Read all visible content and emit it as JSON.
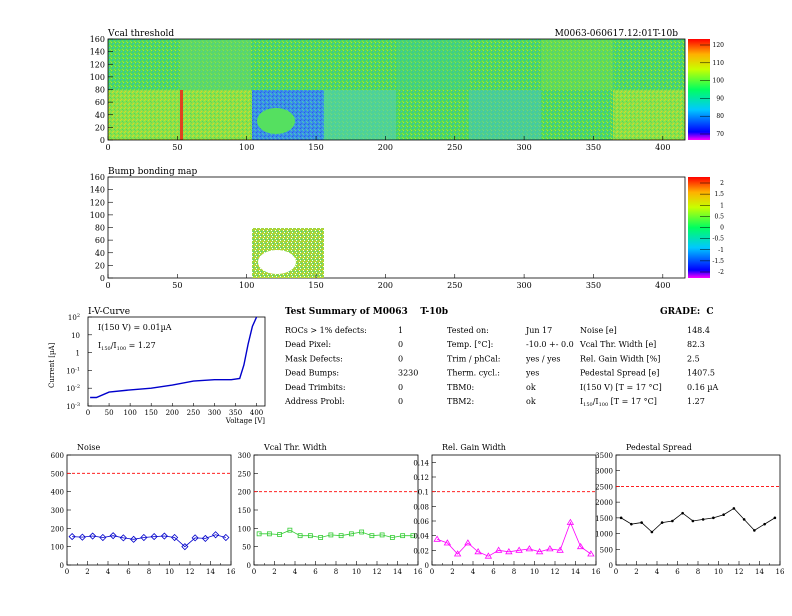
{
  "map1": {
    "title": "Vcal threshold",
    "module_label": "M0063-060617.12:01T-10b",
    "x_ticks": [
      "0",
      "50",
      "100",
      "150",
      "200",
      "250",
      "300",
      "350",
      "400"
    ],
    "y_ticks": [
      "0",
      "20",
      "40",
      "60",
      "80",
      "100",
      "120",
      "140",
      "160"
    ],
    "palette_ticks": [
      "70",
      "80",
      "90",
      "100",
      "110",
      "120"
    ]
  },
  "map2": {
    "title": "Bump bonding map",
    "x_ticks": [
      "0",
      "50",
      "100",
      "150",
      "200",
      "250",
      "300",
      "350",
      "400"
    ],
    "y_ticks": [
      "0",
      "20",
      "40",
      "60",
      "80",
      "100",
      "120",
      "140",
      "160"
    ],
    "palette_ticks": [
      "-2",
      "-1.5",
      "-1",
      "-0.5",
      "0",
      "0.5",
      "1",
      "1.5",
      "2"
    ]
  },
  "iv": {
    "title": "I-V-Curve",
    "ylabel": "Current [µA]",
    "xlabel": "Voltage [V]",
    "annot1": "I(150 V) = 0.01µA",
    "annot2_a": "I",
    "annot2_sub1": "150",
    "annot2_b": "/I",
    "annot2_sub2": "100",
    "annot2_c": " = 1.27",
    "x_ticks": [
      "0",
      "50",
      "100",
      "150",
      "200",
      "250",
      "300",
      "350",
      "400"
    ],
    "y_ticks": [
      {
        "base": "10",
        "exp": "2",
        "v": 100
      },
      {
        "base": "10",
        "exp": "",
        "v": 10
      },
      {
        "base": "1",
        "exp": "",
        "v": 1
      },
      {
        "base": "10",
        "exp": "-1",
        "v": 0.1
      },
      {
        "base": "10",
        "exp": "-2",
        "v": 0.01
      },
      {
        "base": "10",
        "exp": "-3",
        "v": 0.001
      }
    ]
  },
  "summary": {
    "header": "Test Summary of M0063    T-10b",
    "grade": "GRADE:  C",
    "col1": [
      {
        "label": "ROCs > 1% defects:",
        "value": "1"
      },
      {
        "label": "Dead Pixel:",
        "value": "0"
      },
      {
        "label": "Mask Defects:",
        "value": "0"
      },
      {
        "label": "Dead Bumps:",
        "value": "3230"
      },
      {
        "label": "Dead Trimbits:",
        "value": "0"
      },
      {
        "label": "Address Probl:",
        "value": "0"
      }
    ],
    "col2": [
      {
        "label": "Tested on:",
        "value": "Jun 17"
      },
      {
        "label": "Temp. [°C]:",
        "value": "-10.0 +- 0.0"
      },
      {
        "label": "Trim / phCal:",
        "value": "yes / yes"
      },
      {
        "label": "Therm. cycl.:",
        "value": "yes"
      },
      {
        "label": "TBM0:",
        "value": "ok"
      },
      {
        "label": "TBM2:",
        "value": "ok"
      }
    ],
    "col3": [
      {
        "label": "Noise [e]",
        "value": "148.4"
      },
      {
        "label": "Vcal Thr. Width [e]",
        "value": "82.3"
      },
      {
        "label": "Rel. Gain Width [%]",
        "value": "2.5"
      },
      {
        "label": "Pedestal Spread [e]",
        "value": "1407.5"
      },
      {
        "label": "I(150 V) [T = 17 °C]",
        "value": "0.16 µA"
      },
      {
        "label": "I150/I100  [T = 17 °C]",
        "value": "1.27"
      }
    ],
    "col3_ratio_a": "I",
    "col3_ratio_sub1": "150",
    "col3_ratio_b": "/I",
    "col3_ratio_sub2": "100",
    "col3_ratio_c": "   [T = 17 °C]"
  },
  "colors": {
    "noise": "#0000cc",
    "vcal": "#33cc33",
    "gain": "#ff00ff",
    "pedestal": "#000000",
    "limit": "#ff0000",
    "iv": "#0000cc"
  },
  "chart_data": [
    {
      "type": "line",
      "title": "Noise",
      "x": [
        0,
        1,
        2,
        3,
        4,
        5,
        6,
        7,
        8,
        9,
        10,
        11,
        12,
        13,
        14,
        15
      ],
      "values": [
        155,
        152,
        158,
        150,
        160,
        148,
        140,
        150,
        155,
        158,
        150,
        100,
        148,
        145,
        165,
        150
      ],
      "xlim": [
        0,
        16
      ],
      "ylim": [
        0,
        600
      ],
      "x_ticks": [
        "0",
        "2",
        "4",
        "6",
        "8",
        "10",
        "12",
        "14",
        "16"
      ],
      "y_ticks": [
        "0",
        "100",
        "200",
        "300",
        "400",
        "500",
        "600"
      ],
      "limit": 500
    },
    {
      "type": "line",
      "title": "Vcal Thr. Width",
      "x": [
        0,
        1,
        2,
        3,
        4,
        5,
        6,
        7,
        8,
        9,
        10,
        11,
        12,
        13,
        14,
        15
      ],
      "values": [
        85,
        85,
        83,
        95,
        80,
        80,
        75,
        82,
        80,
        85,
        90,
        80,
        82,
        75,
        80,
        80
      ],
      "xlim": [
        0,
        16
      ],
      "ylim": [
        0,
        300
      ],
      "x_ticks": [
        "0",
        "2",
        "4",
        "6",
        "8",
        "10",
        "12",
        "14",
        "16"
      ],
      "y_ticks": [
        "0",
        "50",
        "100",
        "150",
        "200",
        "250",
        "300"
      ],
      "limit": 200
    },
    {
      "type": "line",
      "title": "Rel. Gain Width",
      "x": [
        0,
        1,
        2,
        3,
        4,
        5,
        6,
        7,
        8,
        9,
        10,
        11,
        12,
        13,
        14,
        15
      ],
      "values": [
        0.035,
        0.03,
        0.015,
        0.03,
        0.018,
        0.012,
        0.02,
        0.018,
        0.02,
        0.022,
        0.018,
        0.022,
        0.02,
        0.058,
        0.025,
        0.015
      ],
      "xlim": [
        0,
        16
      ],
      "ylim": [
        0,
        0.15
      ],
      "x_ticks": [
        "0",
        "2",
        "4",
        "6",
        "8",
        "10",
        "12",
        "14",
        "16"
      ],
      "y_ticks": [
        "0",
        "0.02",
        "0.04",
        "0.06",
        "0.08",
        "0.1",
        "0.12",
        "0.14"
      ],
      "limit": 0.1
    },
    {
      "type": "line",
      "title": "Pedestal Spread",
      "x": [
        0,
        1,
        2,
        3,
        4,
        5,
        6,
        7,
        8,
        9,
        10,
        11,
        12,
        13,
        14,
        15
      ],
      "values": [
        1500,
        1300,
        1350,
        1050,
        1350,
        1400,
        1650,
        1400,
        1450,
        1500,
        1600,
        1800,
        1450,
        1100,
        1300,
        1500
      ],
      "xlim": [
        0,
        16
      ],
      "ylim": [
        0,
        3500
      ],
      "x_ticks": [
        "0",
        "2",
        "4",
        "6",
        "8",
        "10",
        "12",
        "14",
        "16"
      ],
      "y_ticks": [
        "0",
        "500",
        "1000",
        "1500",
        "2000",
        "2500",
        "3000",
        "3500"
      ],
      "limit": 2500
    },
    {
      "type": "line",
      "title": "I-V-Curve",
      "x": [
        5,
        20,
        50,
        100,
        150,
        200,
        250,
        300,
        340,
        360,
        370,
        380,
        390,
        400
      ],
      "values": [
        0.003,
        0.003,
        0.006,
        0.008,
        0.01,
        0.015,
        0.025,
        0.03,
        0.03,
        0.035,
        0.2,
        3,
        30,
        100
      ],
      "xlim": [
        0,
        420
      ],
      "ylim": [
        0.001,
        100
      ],
      "yscale": "log"
    }
  ]
}
